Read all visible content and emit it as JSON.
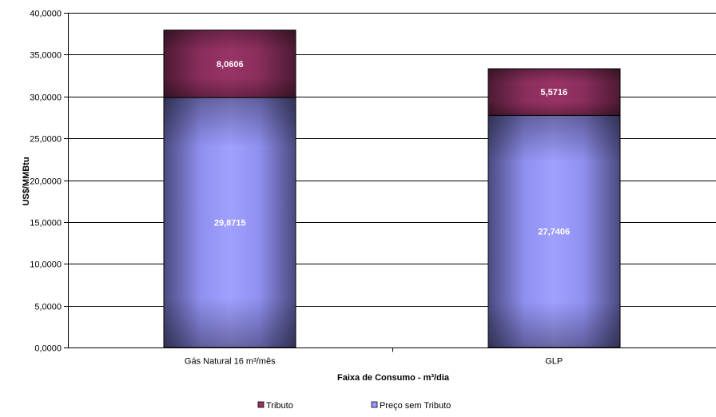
{
  "chart_data": {
    "type": "bar",
    "stacked": true,
    "categories": [
      "Gás Natural 16 m³/mês",
      "GLP"
    ],
    "series": [
      {
        "name": "Preço sem Tributo",
        "values": [
          29.8715,
          27.7406
        ],
        "labels": [
          "29,8715",
          "27,7406"
        ],
        "color": "#9999ff"
      },
      {
        "name": "Tributo",
        "values": [
          8.0606,
          5.5716
        ],
        "labels": [
          "8,0606",
          "5,5716"
        ],
        "color": "#993366"
      }
    ],
    "xlabel": "Faixa de Consumo  - m³/dia",
    "ylabel": "US$/MMBtu",
    "ylim": [
      0,
      40
    ],
    "yticks": [
      0,
      5,
      10,
      15,
      20,
      25,
      30,
      35,
      40
    ],
    "ytick_labels": [
      "0,0000",
      "5,0000",
      "10,0000",
      "15,0000",
      "20,0000",
      "25,0000",
      "30,0000",
      "35,0000",
      "40,0000"
    ],
    "grid": true,
    "legend_position": "bottom",
    "legend_order": [
      "Tributo",
      "Preço sem Tributo"
    ]
  }
}
